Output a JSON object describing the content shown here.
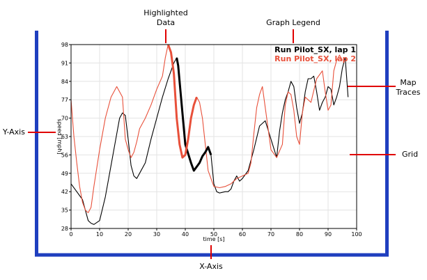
{
  "annotations": {
    "highlighted_line1": "Highlighted",
    "highlighted_line2": "Data",
    "graph_legend": "Graph Legend",
    "map_traces_line1": "Map",
    "map_traces_line2": "Traces",
    "y_axis": "Y-Axis",
    "grid": "Grid",
    "x_axis": "X-Axis"
  },
  "colors": {
    "frame": "#1f3fbf",
    "callout": "#e00000",
    "series1": "#000000",
    "series2": "#e8503a",
    "grid": "#e3e3e3",
    "axis": "#000000"
  },
  "chart_data": {
    "type": "line",
    "xlabel": "time [s]",
    "ylabel": "speed [mph]",
    "xlim": [
      0,
      100
    ],
    "ylim": [
      28,
      98
    ],
    "xticks": [
      0,
      10,
      20,
      30,
      40,
      50,
      60,
      70,
      80,
      90,
      100
    ],
    "yticks": [
      28,
      35,
      42,
      49,
      56,
      63,
      70,
      77,
      84,
      91,
      98
    ],
    "grid": true,
    "legend_position": "top-right",
    "series": [
      {
        "name": "Run Pilot_SX, lap 1",
        "color": "#000000",
        "x": [
          0,
          2,
          4,
          5,
          6,
          7,
          8,
          10,
          12,
          14,
          16,
          17,
          18,
          19,
          20,
          21,
          22,
          23,
          24,
          26,
          28,
          30,
          32,
          34,
          36,
          37,
          37.5,
          38,
          39,
          40,
          42,
          43,
          44,
          45,
          46,
          47,
          48,
          49,
          50,
          51,
          52,
          54,
          55,
          56,
          57,
          58,
          59,
          60,
          62,
          64,
          66,
          68,
          70,
          72,
          73,
          74,
          75,
          76,
          77,
          78,
          79,
          80,
          81,
          82,
          83,
          84,
          85,
          86,
          87,
          88,
          89,
          90,
          91,
          92,
          93,
          94,
          95,
          96,
          97
        ],
        "y": [
          45,
          42,
          39,
          35,
          31,
          30,
          29.5,
          31,
          40,
          52,
          64,
          70,
          72,
          71,
          62,
          52,
          48,
          47,
          49,
          53,
          62,
          70,
          78,
          85,
          91,
          93,
          90,
          84,
          72,
          60,
          53,
          50,
          51.5,
          53,
          55.5,
          57,
          59,
          56,
          45,
          42,
          41.5,
          42,
          42,
          43,
          46,
          48,
          46,
          47,
          50,
          58,
          67,
          69,
          62,
          55,
          65,
          72,
          77,
          80,
          84,
          82,
          74,
          68,
          72,
          80,
          85,
          85,
          86,
          80,
          73,
          76,
          78,
          82,
          81,
          75,
          78,
          82,
          89,
          93,
          78
        ]
      },
      {
        "name": "Run Pilot_SX, lap 2",
        "color": "#e8503a",
        "x": [
          0,
          1,
          2,
          3,
          4,
          5,
          6,
          7,
          8,
          10,
          12,
          14,
          16,
          18,
          19,
          20,
          21,
          22,
          23,
          24,
          26,
          28,
          30,
          32,
          33,
          34,
          35,
          36,
          37,
          38,
          39,
          40,
          41,
          42,
          43,
          44,
          45,
          46,
          47,
          48,
          50,
          52,
          54,
          56,
          58,
          60,
          62,
          63,
          64,
          65,
          66,
          67,
          68,
          70,
          72,
          74,
          75,
          76,
          77,
          78,
          79,
          80,
          81,
          82,
          84,
          86,
          88,
          89,
          90,
          91,
          92,
          93,
          94,
          95
        ],
        "y": [
          77,
          63,
          53,
          44,
          38,
          35,
          34,
          36,
          44,
          58,
          70,
          78,
          82,
          78,
          62,
          58,
          55,
          57,
          61,
          66,
          70,
          75,
          81,
          86,
          93,
          98,
          95,
          87,
          70,
          60,
          55,
          56,
          62,
          70,
          75,
          78,
          76,
          70,
          60,
          50,
          44,
          43.5,
          44,
          45,
          47,
          48,
          49,
          53,
          64,
          74,
          79,
          82,
          74,
          58,
          55,
          60,
          75,
          80,
          79,
          73,
          63,
          60,
          72,
          78,
          76,
          85,
          88,
          80,
          73,
          75,
          88,
          92,
          94,
          92
        ]
      }
    ]
  }
}
